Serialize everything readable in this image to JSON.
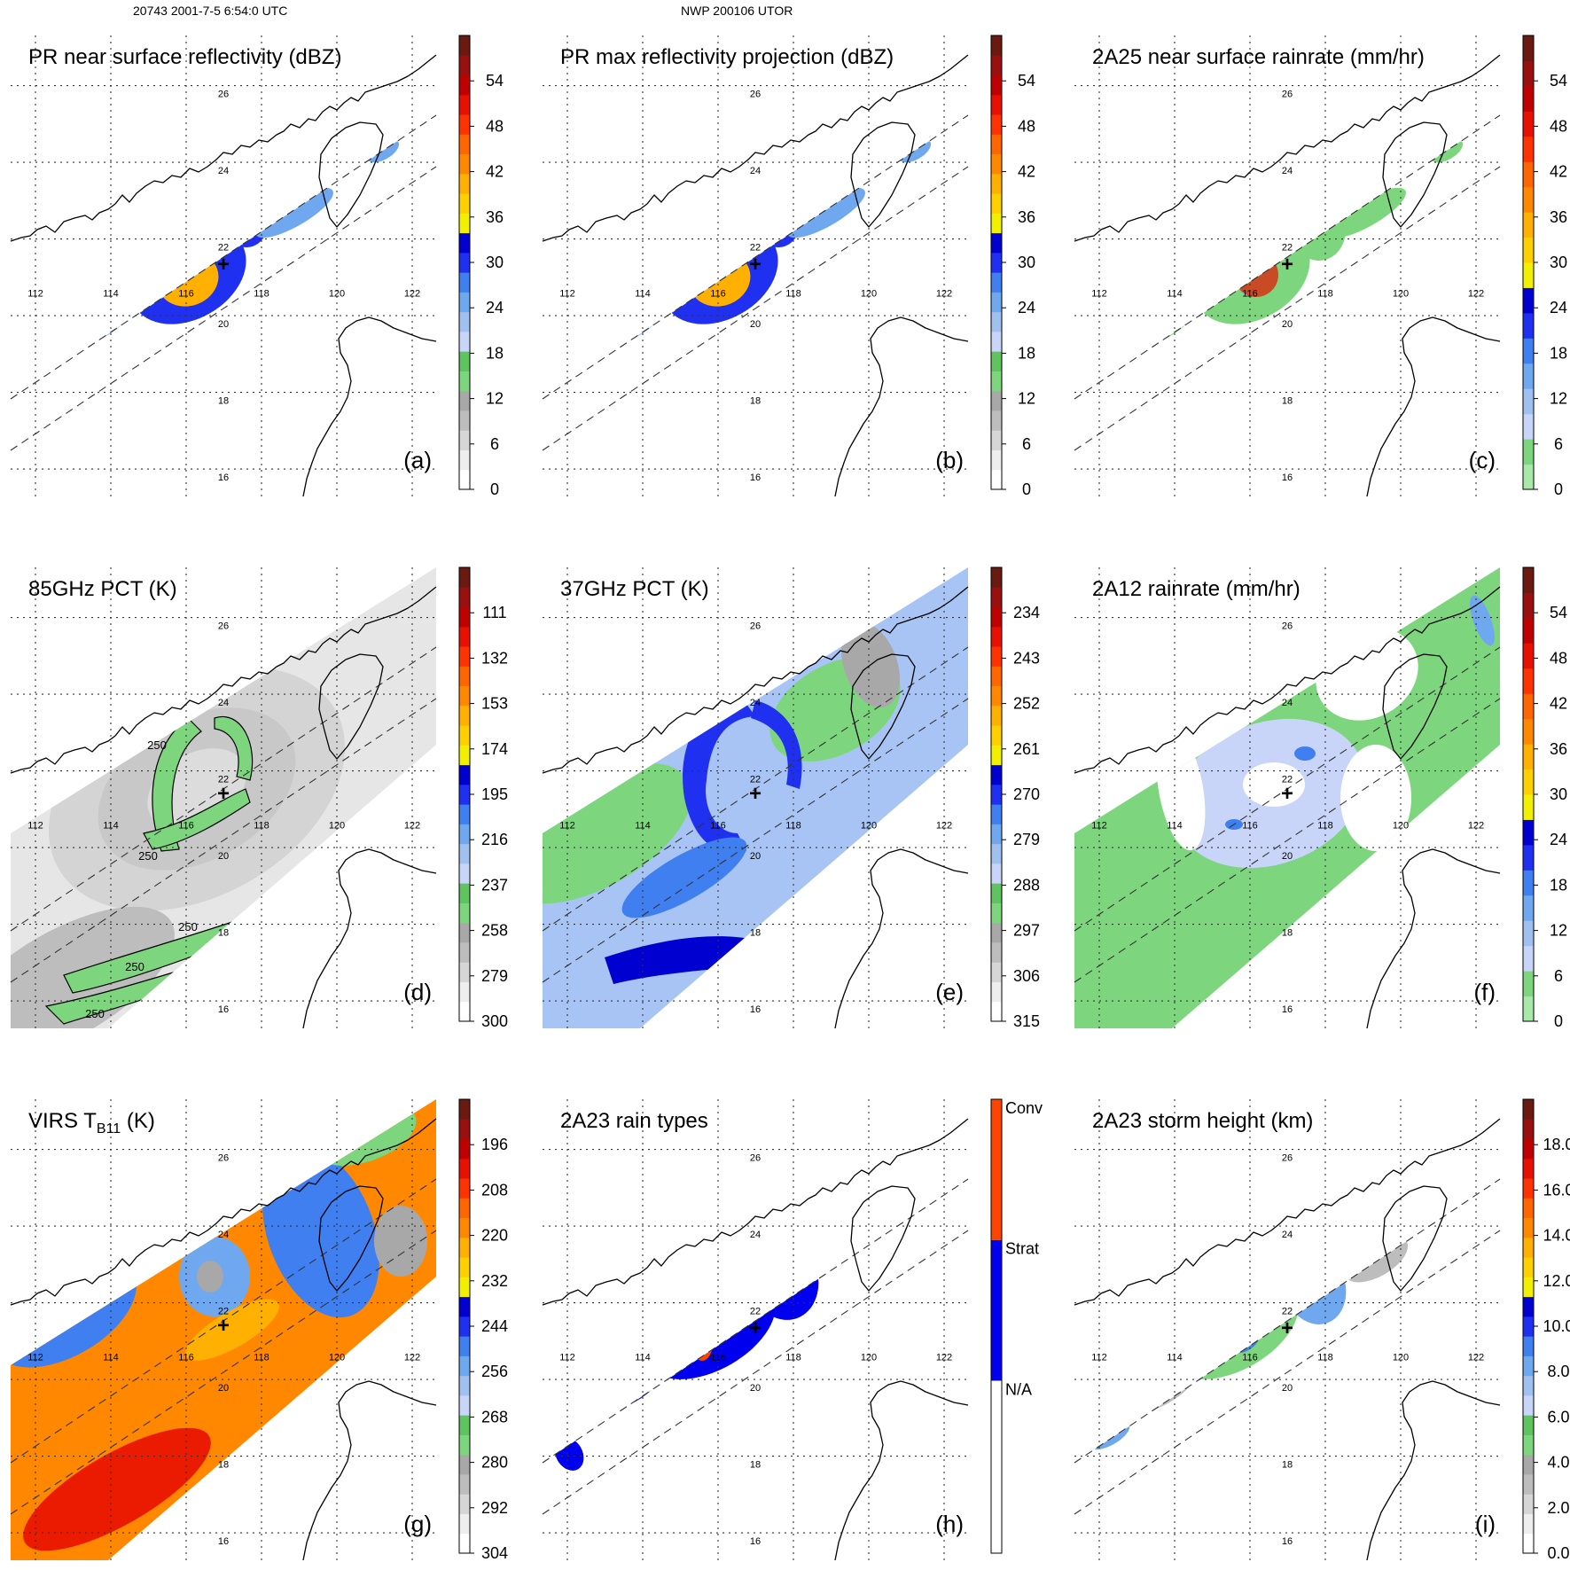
{
  "header": {
    "left": "20743 2001-7-5 6:54:0 UTC",
    "center": "NWP 200106 UTOR"
  },
  "map": {
    "lon_ticks": [
      "112",
      "114",
      "116",
      "118",
      "120",
      "122"
    ],
    "lat_ticks": [
      "16",
      "18",
      "20",
      "22",
      "24",
      "26"
    ],
    "center_mark": "+"
  },
  "chart_data": [
    {
      "id": "a",
      "type": "heatmap",
      "title": "PR near surface reflectivity (dBZ)",
      "label": "(a)",
      "colorbar": {
        "ticks": [
          "0",
          "6",
          "12",
          "18",
          "24",
          "30",
          "36",
          "42",
          "48",
          "54"
        ],
        "range": [
          0,
          60
        ]
      }
    },
    {
      "id": "b",
      "type": "heatmap",
      "title": "PR max reflectivity projection (dBZ)",
      "label": "(b)",
      "colorbar": {
        "ticks": [
          "0",
          "6",
          "12",
          "18",
          "24",
          "30",
          "36",
          "42",
          "48",
          "54"
        ],
        "range": [
          0,
          60
        ]
      }
    },
    {
      "id": "c",
      "type": "heatmap",
      "title": "2A25 near surface rainrate (mm/hr)",
      "label": "(c)",
      "colorbar": {
        "ticks": [
          "0",
          "6",
          "12",
          "18",
          "24",
          "30",
          "36",
          "42",
          "48",
          "54"
        ],
        "range": [
          0,
          60
        ]
      }
    },
    {
      "id": "d",
      "type": "heatmap",
      "title": "85GHz PCT (K)",
      "label": "(d)",
      "colorbar": {
        "ticks": [
          "300",
          "279",
          "258",
          "237",
          "216",
          "195",
          "174",
          "153",
          "132",
          "111"
        ],
        "range": [
          300,
          90
        ]
      },
      "contour_labels": [
        "250",
        "250",
        "250",
        "250",
        "250"
      ]
    },
    {
      "id": "e",
      "type": "heatmap",
      "title": "37GHz PCT (K)",
      "label": "(e)",
      "colorbar": {
        "ticks": [
          "315",
          "306",
          "297",
          "288",
          "279",
          "270",
          "261",
          "252",
          "243",
          "234"
        ],
        "range": [
          315,
          225
        ]
      }
    },
    {
      "id": "f",
      "type": "heatmap",
      "title": "2A12 rainrate (mm/hr)",
      "label": "(f)",
      "colorbar": {
        "ticks": [
          "0",
          "6",
          "12",
          "18",
          "24",
          "30",
          "36",
          "42",
          "48",
          "54"
        ],
        "range": [
          0,
          60
        ]
      }
    },
    {
      "id": "g",
      "type": "heatmap",
      "title_main": "VIRS T",
      "title_sub": "B11",
      "title_tail": " (K)",
      "label": "(g)",
      "colorbar": {
        "ticks": [
          "304",
          "292",
          "280",
          "268",
          "256",
          "244",
          "232",
          "220",
          "208",
          "196"
        ],
        "range": [
          304,
          184
        ]
      }
    },
    {
      "id": "h",
      "type": "heatmap",
      "title": "2A23 rain types",
      "label": "(h)",
      "colorbar": {
        "ticks": [
          "N/A",
          "Strat",
          "Conv"
        ],
        "categorical": true
      }
    },
    {
      "id": "i",
      "type": "heatmap",
      "title": "2A23 storm height (km)",
      "label": "(i)",
      "colorbar": {
        "ticks": [
          "0.0",
          "2.0",
          "4.0",
          "6.0",
          "8.0",
          "10.0",
          "12.0",
          "14.0",
          "16.0",
          "18.0"
        ],
        "range": [
          0,
          20
        ]
      }
    }
  ],
  "colors": {
    "dbz": [
      "#ffffff",
      "#eeeeee",
      "#d6d6d6",
      "#bdbdbd",
      "#a8a8a8",
      "#7dd67d",
      "#5fc45f",
      "#c8d4f8",
      "#a0c0f0",
      "#70a8f0",
      "#3f7ff0",
      "#2030f0",
      "#0000d0",
      "#f0f000",
      "#ffd000",
      "#ffb000",
      "#ff8800",
      "#ff6600",
      "#ff3300",
      "#e81000",
      "#c00000",
      "#9a1010",
      "#6a1a10"
    ],
    "rain": [
      "#a8e8a8",
      "#7dd67d",
      "#c8d4f8",
      "#a0c0f0",
      "#70a8f0",
      "#3f7ff0",
      "#2030f0",
      "#0000d0",
      "#f0f000",
      "#ffd000",
      "#ffb000",
      "#ff8800",
      "#ff6600",
      "#ff3300",
      "#e81000",
      "#c00000",
      "#9a1010",
      "#6a1a10"
    ],
    "conv": "#ff4400",
    "strat": "#0000ee"
  }
}
